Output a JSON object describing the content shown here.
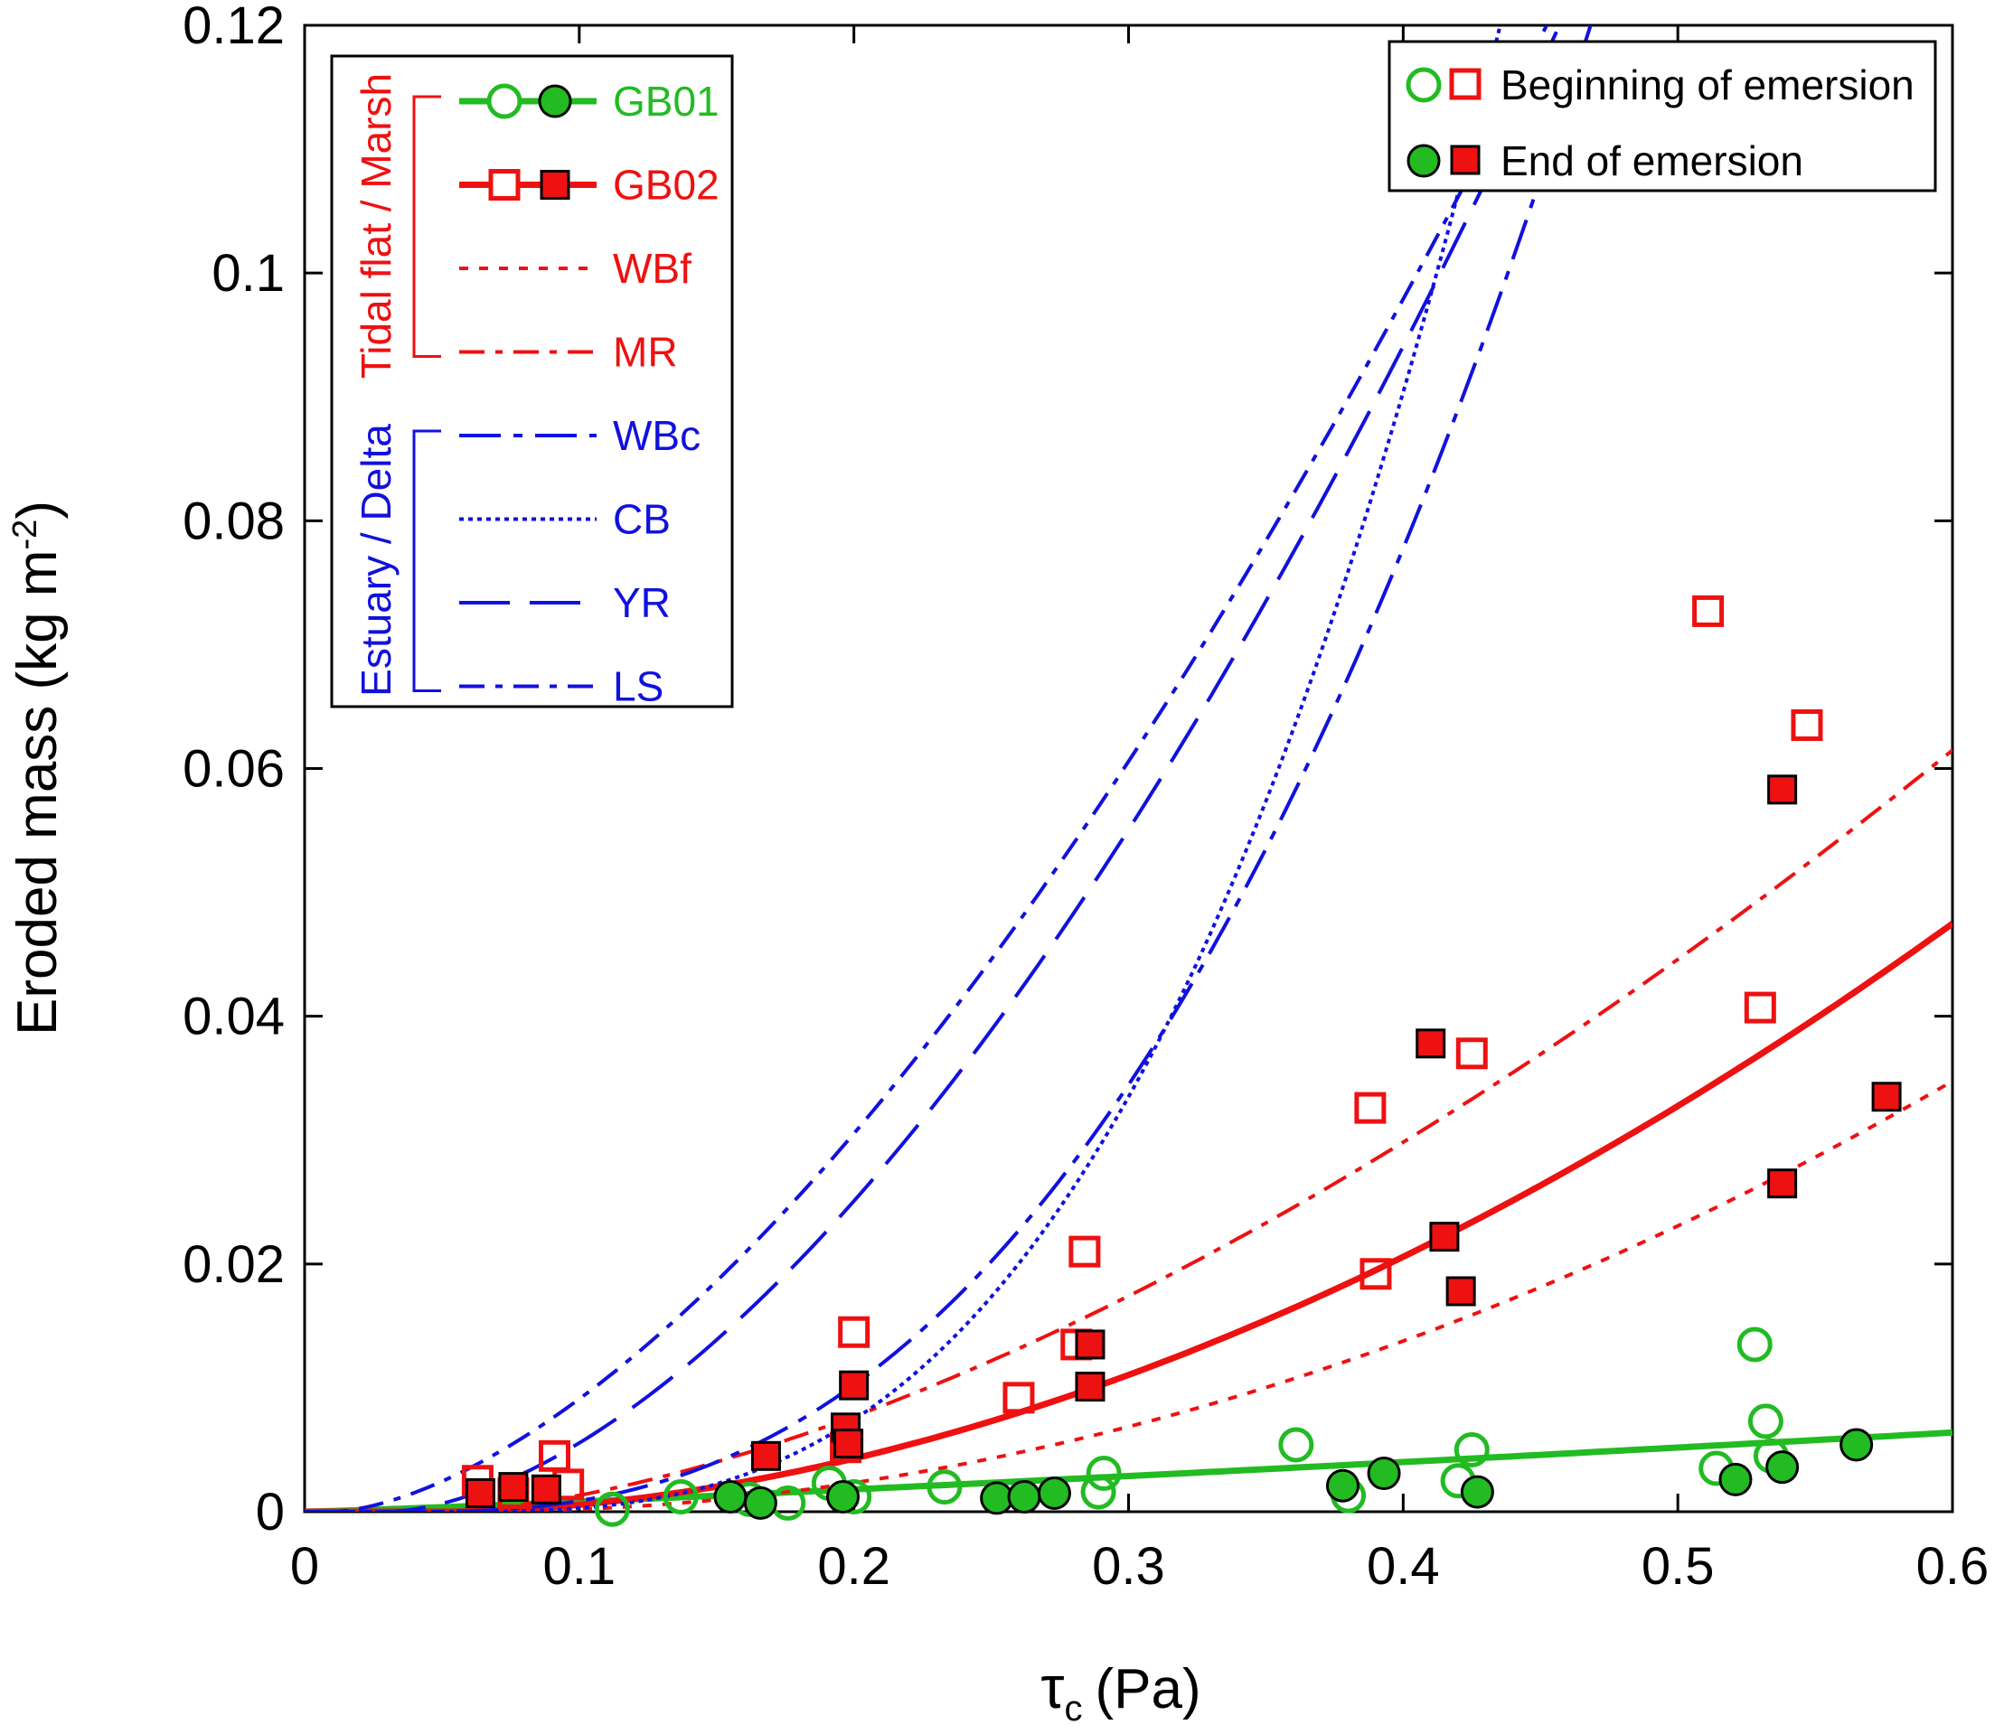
{
  "chart_data": {
    "type": "scatter",
    "xlabel": "τ",
    "xlabel_sub": "c",
    "xlabel_unit": "(Pa)",
    "ylabel": "Eroded mass (kg m",
    "ylabel_sup": "-2",
    "ylabel_close": ")",
    "xlim": [
      0,
      0.6
    ],
    "ylim": [
      0,
      0.12
    ],
    "xticks": [
      0,
      0.1,
      0.2,
      0.3,
      0.4,
      0.5,
      0.6
    ],
    "xtick_labels": [
      "0",
      "0.1",
      "0.2",
      "0.3",
      "0.4",
      "0.5",
      "0.6"
    ],
    "yticks": [
      0,
      0.02,
      0.04,
      0.06,
      0.08,
      0.1,
      0.12
    ],
    "ytick_labels": [
      "0",
      "0.02",
      "0.04",
      "0.06",
      "0.08",
      "0.1",
      "0.12"
    ],
    "colors": {
      "green": "#22bb22",
      "red": "#ee1111",
      "blue": "#1111dd"
    },
    "groups": {
      "tidal": "Tidal flat / Marsh",
      "estuary": "Estuary / Delta"
    },
    "legend_lines": [
      {
        "name": "GB01",
        "color": "#22bb22",
        "style": "solid",
        "marker": "circle"
      },
      {
        "name": "GB02",
        "color": "#ee1111",
        "style": "solid",
        "marker": "square"
      },
      {
        "name": "WBf",
        "color": "#ee1111",
        "style": "dot"
      },
      {
        "name": "MR",
        "color": "#ee1111",
        "style": "dashdot"
      },
      {
        "name": "WBc",
        "color": "#1111dd",
        "style": "dashdot-long"
      },
      {
        "name": "CB",
        "color": "#1111dd",
        "style": "fine-dot"
      },
      {
        "name": "YR",
        "color": "#1111dd",
        "style": "long-dash"
      },
      {
        "name": "LS",
        "color": "#1111dd",
        "style": "dashdot"
      }
    ],
    "legend_markers": [
      {
        "label": "Beginning of emersion",
        "filled": false
      },
      {
        "label": "End of emersion",
        "filled": true
      }
    ],
    "curves": [
      {
        "name": "GB01",
        "color": "#22bb22",
        "style": "solid",
        "width": 7,
        "a": 0.0115,
        "b": 0.0,
        "p": 1.15
      },
      {
        "name": "GB02",
        "color": "#ee1111",
        "style": "solid",
        "width": 7,
        "a": 0.1435,
        "b": 0.05,
        "p": 1.85
      },
      {
        "name": "WBf",
        "color": "#ee1111",
        "style": "dot",
        "width": 4,
        "a": 0.1192,
        "b": 0.06,
        "p": 2.0
      },
      {
        "name": "MR",
        "color": "#ee1111",
        "style": "dashdot",
        "width": 4,
        "a": 0.16,
        "b": 0.05,
        "p": 1.6
      },
      {
        "name": "WBc",
        "color": "#1111dd",
        "style": "dashdot-long",
        "width": 4,
        "a": 1.0,
        "b": 0.04,
        "p": 2.5
      },
      {
        "name": "CB",
        "color": "#1111dd",
        "style": "fine-dot",
        "width": 4,
        "a": 2.0,
        "b": 0.05,
        "p": 2.95
      },
      {
        "name": "YR",
        "color": "#1111dd",
        "style": "long-dash",
        "width": 4,
        "a": 0.51,
        "b": 0.03,
        "p": 1.7
      },
      {
        "name": "LS",
        "color": "#1111dd",
        "style": "dashdot",
        "width": 4,
        "a": 0.45,
        "b": 0.01,
        "p": 1.62
      }
    ],
    "series": [
      {
        "name": "GB01 beginning of emersion",
        "marker": "circle",
        "filled": false,
        "color": "#22bb22",
        "points": [
          [
            0.112,
            0.0002
          ],
          [
            0.137,
            0.0012
          ],
          [
            0.162,
            0.001
          ],
          [
            0.176,
            0.0007
          ],
          [
            0.191,
            0.0023
          ],
          [
            0.2,
            0.0012
          ],
          [
            0.233,
            0.002
          ],
          [
            0.289,
            0.0016
          ],
          [
            0.291,
            0.0031
          ],
          [
            0.361,
            0.0054
          ],
          [
            0.38,
            0.0013
          ],
          [
            0.42,
            0.0025
          ],
          [
            0.425,
            0.005
          ],
          [
            0.514,
            0.0035
          ],
          [
            0.528,
            0.0135
          ],
          [
            0.532,
            0.0073
          ],
          [
            0.534,
            0.0045
          ]
        ]
      },
      {
        "name": "GB01 end of emersion",
        "marker": "circle",
        "filled": true,
        "color": "#22bb22",
        "points": [
          [
            0.155,
            0.0012
          ],
          [
            0.166,
            0.0007
          ],
          [
            0.196,
            0.0012
          ],
          [
            0.252,
            0.0011
          ],
          [
            0.262,
            0.0012
          ],
          [
            0.273,
            0.0015
          ],
          [
            0.378,
            0.0021
          ],
          [
            0.393,
            0.0031
          ],
          [
            0.427,
            0.0016
          ],
          [
            0.521,
            0.0026
          ],
          [
            0.538,
            0.0036
          ],
          [
            0.565,
            0.0054
          ]
        ]
      },
      {
        "name": "GB02 beginning of emersion",
        "marker": "square",
        "filled": false,
        "color": "#ee1111",
        "points": [
          [
            0.063,
            0.0025
          ],
          [
            0.076,
            0.0015
          ],
          [
            0.091,
            0.0045
          ],
          [
            0.096,
            0.0022
          ],
          [
            0.197,
            0.0052
          ],
          [
            0.2,
            0.0145
          ],
          [
            0.26,
            0.0092
          ],
          [
            0.281,
            0.0135
          ],
          [
            0.284,
            0.021
          ],
          [
            0.388,
            0.0326
          ],
          [
            0.39,
            0.0192
          ],
          [
            0.425,
            0.037
          ],
          [
            0.511,
            0.0727
          ],
          [
            0.53,
            0.0407
          ],
          [
            0.547,
            0.0635
          ]
        ]
      },
      {
        "name": "GB02 end of emersion",
        "marker": "square",
        "filled": true,
        "color": "#ee1111",
        "points": [
          [
            0.064,
            0.0015
          ],
          [
            0.076,
            0.002
          ],
          [
            0.088,
            0.0018
          ],
          [
            0.168,
            0.0045
          ],
          [
            0.197,
            0.0068
          ],
          [
            0.198,
            0.0055
          ],
          [
            0.2,
            0.0102
          ],
          [
            0.286,
            0.0135
          ],
          [
            0.286,
            0.0101
          ],
          [
            0.41,
            0.0378
          ],
          [
            0.415,
            0.0222
          ],
          [
            0.421,
            0.0178
          ],
          [
            0.538,
            0.0265
          ],
          [
            0.538,
            0.0583
          ],
          [
            0.576,
            0.0335
          ]
        ]
      }
    ]
  }
}
